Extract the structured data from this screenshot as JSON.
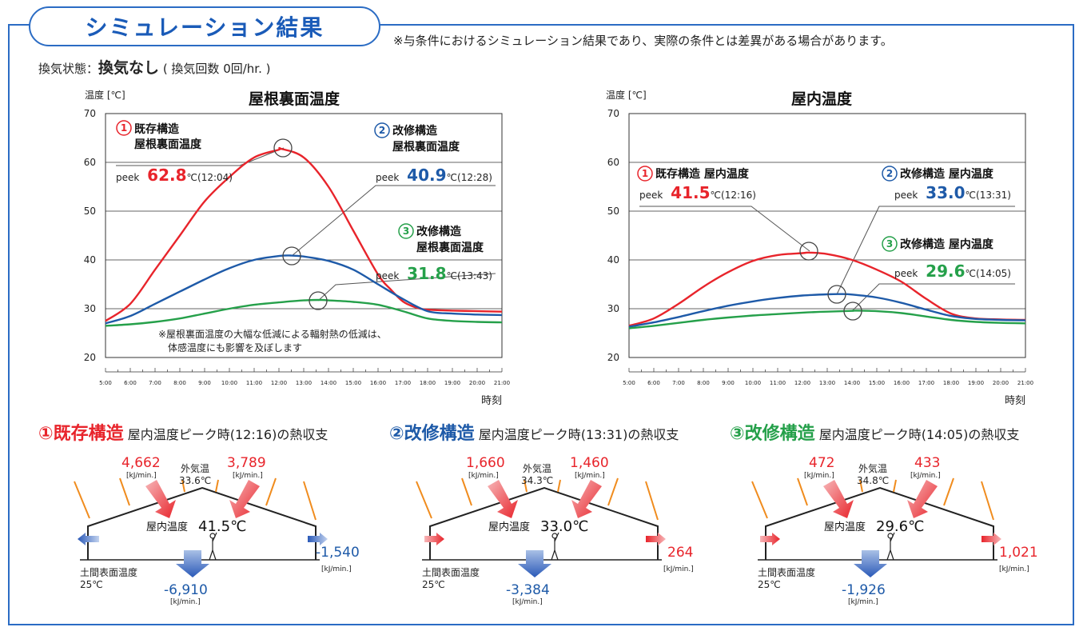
{
  "header": {
    "title": "シミュレーション結果",
    "note": "※与条件におけるシミュレーション結果であり、実際の条件とは差異がある場合があります。",
    "condition_label": "換気状態：",
    "condition_value": "換気なし",
    "condition_detail": "( 換気回数 0回/hr. )"
  },
  "colors": {
    "red": "#e8242b",
    "blue": "#1e5aa8",
    "green": "#25a04a",
    "frame": "#2b6cc4",
    "orange": "#f08c1e"
  },
  "chart_data": [
    {
      "type": "line",
      "title": "屋根裏面温度",
      "ylabel": "温度 [℃]",
      "xlabel": "時刻",
      "ylim": [
        20,
        70
      ],
      "yticks": [
        "70",
        "60",
        "50",
        "40",
        "30",
        "20"
      ],
      "xticks": [
        "5:00",
        "6:00",
        "7:00",
        "8:00",
        "9:00",
        "10:00",
        "11:00",
        "12:00",
        "13:00",
        "14:00",
        "15:00",
        "16:00",
        "17:00",
        "18:00",
        "19:00",
        "20:00",
        "21:00"
      ],
      "series": [
        {
          "name": "①既存構造 屋根裏面温度",
          "color": "#e8242b",
          "x": [
            5,
            6,
            7,
            8,
            9,
            10,
            11,
            12,
            12.07,
            13,
            14,
            15,
            16,
            16.5,
            17,
            17.5,
            18,
            19,
            20,
            21
          ],
          "y": [
            27.5,
            31,
            38,
            45,
            52,
            57,
            61,
            62.6,
            62.8,
            61,
            55,
            46,
            37,
            34,
            31.5,
            30.3,
            29.8,
            29.6,
            29.5,
            29.4
          ]
        },
        {
          "name": "②改修構造 屋根裏面温度",
          "color": "#1e5aa8",
          "x": [
            5,
            6,
            7,
            8,
            9,
            10,
            11,
            12,
            12.47,
            13,
            14,
            15,
            16,
            17,
            18,
            19,
            20,
            21
          ],
          "y": [
            27,
            28.5,
            31,
            33.5,
            36,
            38.3,
            40,
            40.8,
            40.9,
            40.7,
            39.8,
            38,
            35,
            32,
            29.5,
            29,
            28.8,
            28.7
          ]
        },
        {
          "name": "③改修構造 屋根裏面温度",
          "color": "#25a04a",
          "x": [
            5,
            6,
            7,
            8,
            9,
            10,
            11,
            12,
            13,
            13.72,
            14,
            15,
            16,
            17,
            18,
            19,
            20,
            21
          ],
          "y": [
            26.5,
            26.8,
            27.3,
            28,
            29,
            30,
            30.8,
            31.3,
            31.7,
            31.8,
            31.7,
            31.4,
            30.8,
            29.5,
            28,
            27.5,
            27.3,
            27.2
          ]
        }
      ],
      "annotations": [
        {
          "num": "①",
          "line1": "既存構造",
          "line2": "屋根裏面温度",
          "peek_label": "peek",
          "peek_value": "62.8",
          "unit": "℃",
          "time": "(12:04)",
          "color": "#e8242b"
        },
        {
          "num": "②",
          "line1": "改修構造",
          "line2": "屋根裏面温度",
          "peek_label": "peek",
          "peek_value": "40.9",
          "unit": "℃",
          "time": "(12:28)",
          "color": "#1e5aa8"
        },
        {
          "num": "③",
          "line1": "改修構造",
          "line2": "屋根裏面温度",
          "peek_label": "peek",
          "peek_value": "31.8",
          "unit": "℃",
          "time": "(13:43)",
          "color": "#25a04a"
        }
      ],
      "footnote": [
        "※屋根裏面温度の大幅な低減による輻射熱の低減は、",
        "体感温度にも影響を及ぼします"
      ]
    },
    {
      "type": "line",
      "title": "屋内温度",
      "ylabel": "温度 [℃]",
      "xlabel": "時刻",
      "ylim": [
        20,
        70
      ],
      "yticks": [
        "70",
        "60",
        "50",
        "40",
        "30",
        "20"
      ],
      "xticks": [
        "5:00",
        "6:00",
        "7:00",
        "8:00",
        "9:00",
        "10:00",
        "11:00",
        "12:00",
        "13:00",
        "14:00",
        "15:00",
        "16:00",
        "17:00",
        "18:00",
        "19:00",
        "20:00",
        "21:00"
      ],
      "series": [
        {
          "name": "①既存構造 屋内温度",
          "color": "#e8242b",
          "x": [
            5,
            6,
            7,
            8,
            9,
            10,
            11,
            12,
            12.27,
            13,
            14,
            15,
            16,
            17,
            18,
            19,
            20,
            21
          ],
          "y": [
            26.5,
            28,
            31,
            34.5,
            37.5,
            39.8,
            41,
            41.4,
            41.5,
            41.2,
            40,
            38,
            35.5,
            32,
            29,
            28,
            27.8,
            27.7
          ]
        },
        {
          "name": "②改修構造 屋内温度",
          "color": "#1e5aa8",
          "x": [
            5,
            6,
            7,
            8,
            9,
            10,
            11,
            12,
            13,
            13.52,
            14,
            15,
            16,
            17,
            18,
            19,
            20,
            21
          ],
          "y": [
            26.3,
            27.2,
            28.3,
            29.5,
            30.6,
            31.5,
            32.2,
            32.7,
            32.95,
            33.0,
            32.9,
            32.3,
            31.2,
            29.8,
            28.5,
            27.9,
            27.7,
            27.6
          ]
        },
        {
          "name": "③改修構造 屋内温度",
          "color": "#25a04a",
          "x": [
            5,
            6,
            7,
            8,
            9,
            10,
            11,
            12,
            13,
            14,
            14.08,
            15,
            16,
            17,
            18,
            19,
            20,
            21
          ],
          "y": [
            26,
            26.5,
            27.1,
            27.7,
            28.2,
            28.6,
            28.9,
            29.2,
            29.4,
            29.55,
            29.6,
            29.5,
            29.1,
            28.4,
            27.7,
            27.3,
            27.1,
            27.0
          ]
        }
      ],
      "annotations": [
        {
          "num": "①",
          "line1": "既存構造 屋内温度",
          "peek_label": "peek",
          "peek_value": "41.5",
          "unit": "℃",
          "time": "(12:16)",
          "color": "#e8242b"
        },
        {
          "num": "②",
          "line1": "改修構造 屋内温度",
          "peek_label": "peek",
          "peek_value": "33.0",
          "unit": "℃",
          "time": "(13:31)",
          "color": "#1e5aa8"
        },
        {
          "num": "③",
          "line1": "改修構造 屋内温度",
          "peek_label": "peek",
          "peek_value": "29.6",
          "unit": "℃",
          "time": "(14:05)",
          "color": "#25a04a"
        }
      ]
    }
  ],
  "heat_balance": [
    {
      "num": "①",
      "name": "既存構造",
      "desc": "屋内温度ピーク時(12:16)の熱収支",
      "color": "#e8242b",
      "roof_left": "4,662",
      "roof_right": "3,789",
      "unit": "[kJ/min.]",
      "outside_label": "外気温",
      "outside_temp": "33.6℃",
      "indoor_label": "屋内温度",
      "indoor_temp": "41.5℃",
      "wall_value": "-1,540",
      "wall_color": "#1e5aa8",
      "wall_dir": "out",
      "floor_value": "-6,910",
      "ground_label": "土間表面温度",
      "ground_temp": "25℃"
    },
    {
      "num": "②",
      "name": "改修構造",
      "desc": "屋内温度ピーク時(13:31)の熱収支",
      "color": "#1e5aa8",
      "roof_left": "1,660",
      "roof_right": "1,460",
      "unit": "[kJ/min.]",
      "outside_label": "外気温",
      "outside_temp": "34.3℃",
      "indoor_label": "屋内温度",
      "indoor_temp": "33.0℃",
      "wall_value": "264",
      "wall_color": "#e8242b",
      "wall_dir": "in",
      "floor_value": "-3,384",
      "ground_label": "土間表面温度",
      "ground_temp": "25℃"
    },
    {
      "num": "③",
      "name": "改修構造",
      "desc": "屋内温度ピーク時(14:05)の熱収支",
      "color": "#25a04a",
      "roof_left": "472",
      "roof_right": "433",
      "unit": "[kJ/min.]",
      "outside_label": "外気温",
      "outside_temp": "34.8℃",
      "indoor_label": "屋内温度",
      "indoor_temp": "29.6℃",
      "wall_value": "1,021",
      "wall_color": "#e8242b",
      "wall_dir": "in",
      "floor_value": "-1,926",
      "ground_label": "土間表面温度",
      "ground_temp": "25℃"
    }
  ]
}
